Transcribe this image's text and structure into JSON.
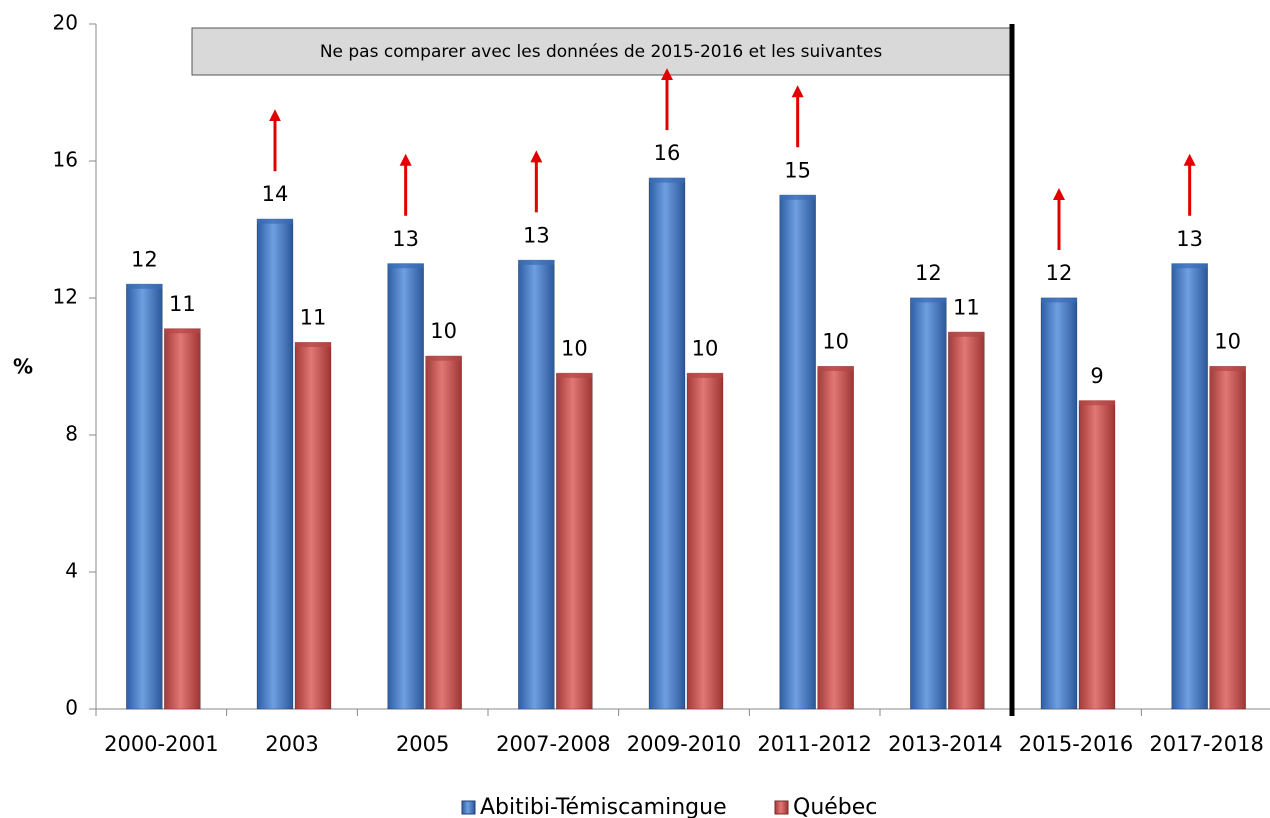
{
  "chart_data": {
    "type": "bar",
    "ylabel": "%",
    "ylim": [
      0,
      20
    ],
    "yticks": [
      "0",
      "4",
      "8",
      "12",
      "16",
      "20"
    ],
    "categories": [
      "2000-2001",
      "2003",
      "2005",
      "2007-2008",
      "2009-2010",
      "2011-2012",
      "2013-2014",
      "2015-2016",
      "2017-2018"
    ],
    "series": [
      {
        "name": "Abitibi-Témiscamingue",
        "color": "#4a7ec4",
        "values": [
          12.4,
          14.3,
          13.0,
          13.1,
          15.5,
          15.0,
          12.0,
          12.0,
          13.0
        ],
        "labels": [
          "12",
          "14",
          "13",
          "13",
          "16",
          "15",
          "12",
          "12",
          "13"
        ]
      },
      {
        "name": "Québec",
        "color": "#c85250",
        "values": [
          11.1,
          10.7,
          10.3,
          9.8,
          9.8,
          10.0,
          11.0,
          9.0,
          10.0
        ],
        "labels": [
          "11",
          "11",
          "10",
          "10",
          "10",
          "10",
          "11",
          "9",
          "10"
        ]
      }
    ],
    "significant_higher_arrows": [
      false,
      true,
      true,
      true,
      true,
      true,
      false,
      true,
      true
    ],
    "arrow_color": "#e00000",
    "annotation": "Ne pas comparer avec les données de 2015-2016 et les suivantes",
    "divider_between": [
      "2013-2014",
      "2015-2016"
    ],
    "legend_position": "bottom",
    "grid": false
  }
}
